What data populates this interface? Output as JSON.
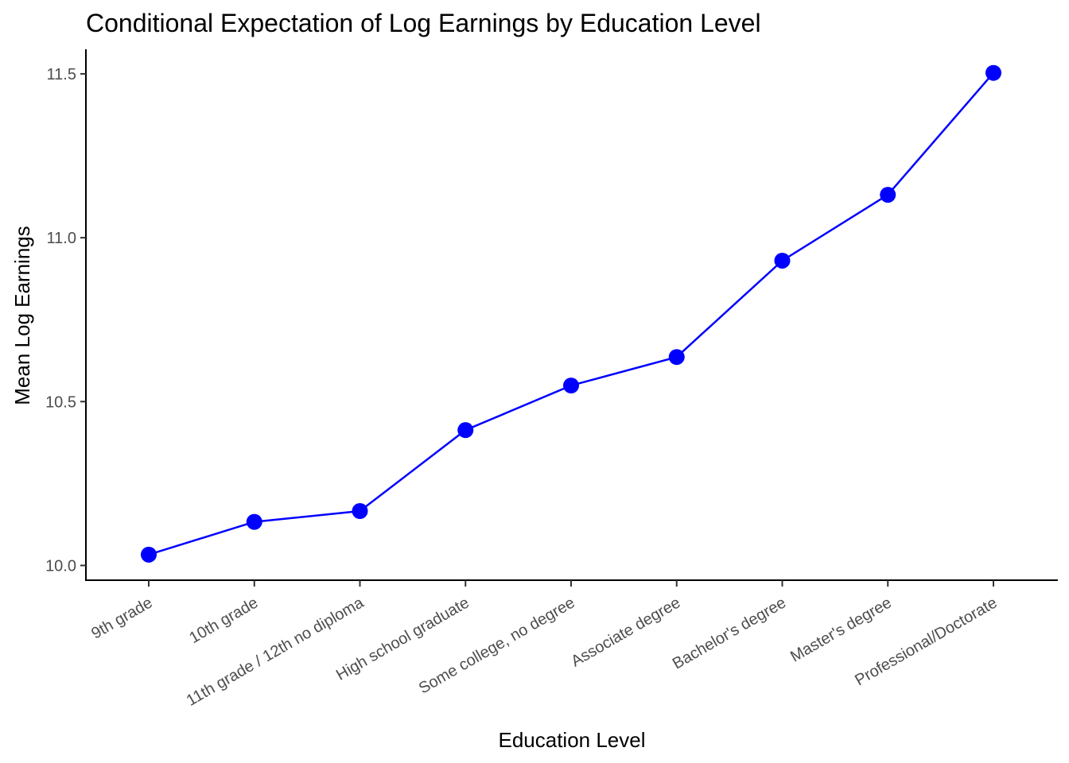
{
  "chart_data": {
    "type": "line",
    "title": "Conditional Expectation of Log Earnings by Education Level",
    "xlabel": "Education Level",
    "ylabel": "Mean Log Earnings",
    "categories": [
      "9th grade",
      "10th grade",
      "11th grade / 12th no diploma",
      "High school graduate",
      "Some college, no degree",
      "Associate degree",
      "Bachelor's degree",
      "Master's degree",
      "Professional/Doctorate"
    ],
    "series": [
      {
        "values": [
          10.033,
          10.133,
          10.166,
          10.413,
          10.549,
          10.636,
          10.93,
          11.131,
          11.503
        ],
        "color": "#0000ff"
      }
    ],
    "yticks": [
      10.0,
      10.5,
      11.0,
      11.5
    ],
    "ytick_labels": [
      "10.0",
      "10.5",
      "11.0",
      "11.5"
    ],
    "ylim": [
      9.955,
      11.575
    ],
    "grid": false,
    "legend": "none"
  }
}
